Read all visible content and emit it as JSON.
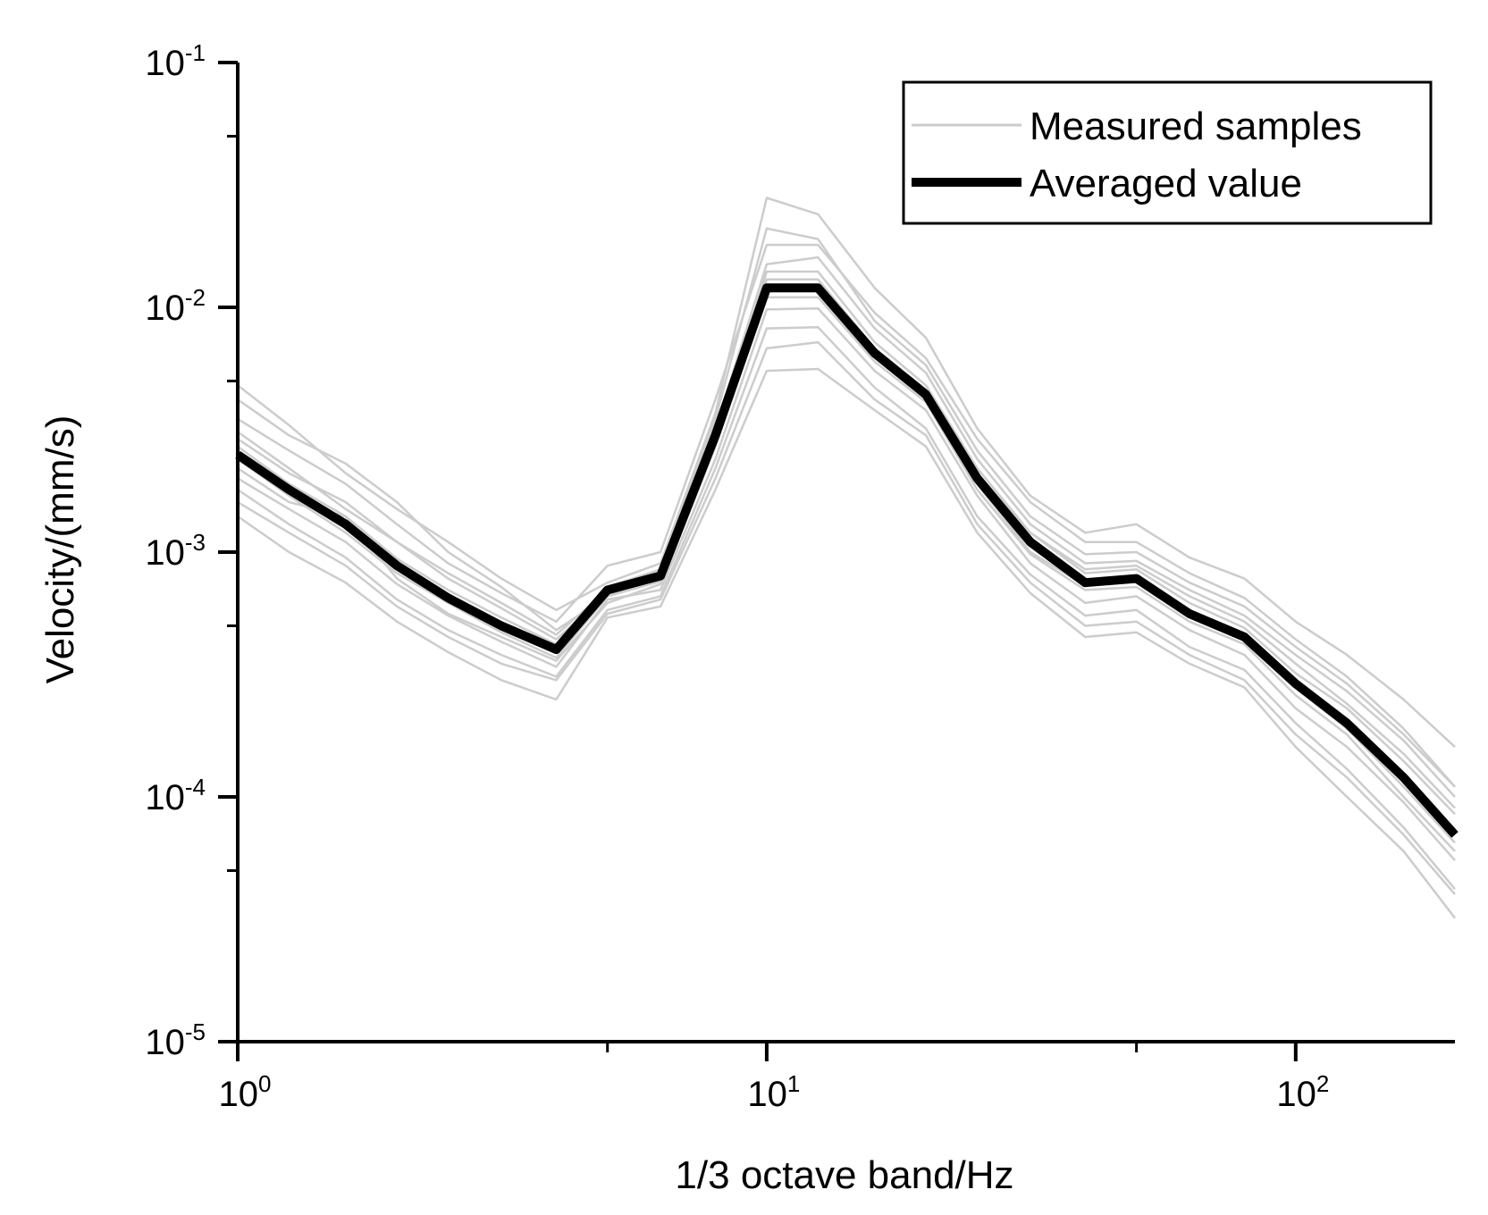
{
  "chart_data": {
    "type": "line",
    "title": "",
    "xlabel": "1/3 octave band/Hz",
    "ylabel": "Velocity/(mm/s)",
    "xscale": "log",
    "yscale": "log",
    "xlim": [
      1,
      200
    ],
    "ylim": [
      1e-05,
      0.1
    ],
    "x_ticks": [
      {
        "value": 1,
        "base": "10",
        "exp": "0"
      },
      {
        "value": 10,
        "base": "10",
        "exp": "1"
      },
      {
        "value": 100,
        "base": "10",
        "exp": "2"
      }
    ],
    "y_ticks": [
      {
        "value": 0.1,
        "base": "10",
        "exp": "-1"
      },
      {
        "value": 0.01,
        "base": "10",
        "exp": "-2"
      },
      {
        "value": 0.001,
        "base": "10",
        "exp": "-3"
      },
      {
        "value": 0.0001,
        "base": "10",
        "exp": "-4"
      },
      {
        "value": 1e-05,
        "base": "10",
        "exp": "-5"
      }
    ],
    "legend": {
      "position": "top-right",
      "entries": [
        {
          "label": "Measured samples",
          "color": "#cccccc",
          "style": "thin"
        },
        {
          "label": "Averaged value",
          "color": "#000000",
          "style": "thick"
        }
      ]
    },
    "x": [
      1,
      1.25,
      1.6,
      2,
      2.5,
      3.15,
      4,
      5,
      6.3,
      8,
      10,
      12.5,
      16,
      20,
      25,
      31.5,
      40,
      50,
      63,
      80,
      100,
      125,
      160,
      200
    ],
    "averaged": [
      0.0025,
      0.0018,
      0.0013,
      0.00088,
      0.00065,
      0.0005,
      0.0004,
      0.0007,
      0.0008,
      0.003,
      0.012,
      0.012,
      0.0065,
      0.0044,
      0.002,
      0.0011,
      0.00075,
      0.00078,
      0.00056,
      0.00045,
      0.00029,
      0.0002,
      0.00012,
      7e-05
    ],
    "sample_series": [
      [
        0.0035,
        0.0026,
        0.0019,
        0.0013,
        0.0009,
        0.00068,
        0.00052,
        0.00088,
        0.001,
        0.0042,
        0.018,
        0.018,
        0.0095,
        0.0062,
        0.0029,
        0.0016,
        0.0011,
        0.0011,
        0.00082,
        0.00065,
        0.00044,
        0.00031,
        0.00019,
        0.00011
      ],
      [
        0.0018,
        0.0013,
        0.00095,
        0.00064,
        0.00048,
        0.00038,
        0.00031,
        0.00058,
        0.00066,
        0.0022,
        0.0082,
        0.0083,
        0.0047,
        0.0032,
        0.0014,
        0.00081,
        0.00055,
        0.00058,
        0.00041,
        0.00033,
        0.0002,
        0.00013,
        7.5e-05,
        4.2e-05
      ],
      [
        0.0048,
        0.0033,
        0.0021,
        0.0015,
        0.0011,
        0.00078,
        0.00058,
        0.00075,
        0.0009,
        0.0037,
        0.028,
        0.024,
        0.012,
        0.0075,
        0.0032,
        0.0017,
        0.0012,
        0.0013,
        0.00095,
        0.00078,
        0.00052,
        0.00038,
        0.00025,
        0.00016
      ],
      [
        0.0022,
        0.0016,
        0.0014,
        0.00078,
        0.00056,
        0.00045,
        0.00036,
        0.00062,
        0.00074,
        0.0027,
        0.011,
        0.011,
        0.006,
        0.0041,
        0.0018,
        0.00098,
        0.0007,
        0.00072,
        0.00052,
        0.00042,
        0.00026,
        0.00018,
        0.0001,
        6e-05
      ],
      [
        0.0031,
        0.0022,
        0.0015,
        0.0011,
        0.00078,
        0.00059,
        0.00044,
        0.00068,
        0.00078,
        0.0032,
        0.015,
        0.016,
        0.0082,
        0.0054,
        0.0024,
        0.0013,
        0.0009,
        0.00092,
        0.0007,
        0.00055,
        0.00038,
        0.00027,
        0.00017,
        0.0001
      ],
      [
        0.0014,
        0.001,
        0.00075,
        0.00052,
        0.00039,
        0.0003,
        0.00025,
        0.00054,
        0.0006,
        0.0018,
        0.0055,
        0.0056,
        0.0038,
        0.0027,
        0.0012,
        0.00068,
        0.00045,
        0.00047,
        0.00035,
        0.00028,
        0.00016,
        0.0001,
        6e-05,
        3.2e-05
      ],
      [
        0.0027,
        0.0019,
        0.0014,
        0.00094,
        0.0007,
        0.00054,
        0.00042,
        0.00072,
        0.00085,
        0.0035,
        0.021,
        0.019,
        0.0088,
        0.0058,
        0.0026,
        0.0014,
        0.00098,
        0.001,
        0.00075,
        0.0006,
        0.00041,
        0.00029,
        0.00018,
        0.00011
      ],
      [
        0.002,
        0.0015,
        0.0011,
        0.00074,
        0.00055,
        0.00043,
        0.00034,
        0.00064,
        0.0007,
        0.0024,
        0.0098,
        0.0099,
        0.0055,
        0.0038,
        0.0017,
        0.0009,
        0.00062,
        0.00066,
        0.00048,
        0.00038,
        0.00023,
        0.00016,
        9.5e-05,
        5.5e-05
      ],
      [
        0.0042,
        0.003,
        0.0023,
        0.0016,
        0.001,
        0.00072,
        0.00048,
        0.00066,
        0.00082,
        0.0029,
        0.014,
        0.014,
        0.0072,
        0.0048,
        0.0022,
        0.0012,
        0.00085,
        0.00088,
        0.00066,
        0.00052,
        0.00035,
        0.00024,
        0.00015,
        9e-05
      ],
      [
        0.0016,
        0.0012,
        0.00088,
        0.0006,
        0.00045,
        0.00035,
        0.0003,
        0.00056,
        0.00064,
        0.002,
        0.0068,
        0.0072,
        0.0042,
        0.003,
        0.0013,
        0.00075,
        0.0005,
        0.00052,
        0.00038,
        0.0003,
        0.00018,
        0.00012,
        7e-05,
        4e-05
      ],
      [
        0.0029,
        0.0021,
        0.0016,
        0.0011,
        0.00082,
        0.00062,
        0.00046,
        0.0007,
        0.00081,
        0.0031,
        0.013,
        0.013,
        0.0068,
        0.0046,
        0.0021,
        0.0012,
        0.00082,
        0.00085,
        0.00062,
        0.00049,
        0.00032,
        0.00023,
        0.00014,
        8.5e-05
      ],
      [
        0.0024,
        0.0017,
        0.0012,
        0.00082,
        0.00062,
        0.00047,
        0.00037,
        0.00066,
        0.00076,
        0.0028,
        0.012,
        0.012,
        0.0064,
        0.0043,
        0.0019,
        0.001,
        0.00073,
        0.00076,
        0.00055,
        0.00044,
        0.00028,
        0.00019,
        0.00011,
        6.5e-05
      ]
    ]
  }
}
